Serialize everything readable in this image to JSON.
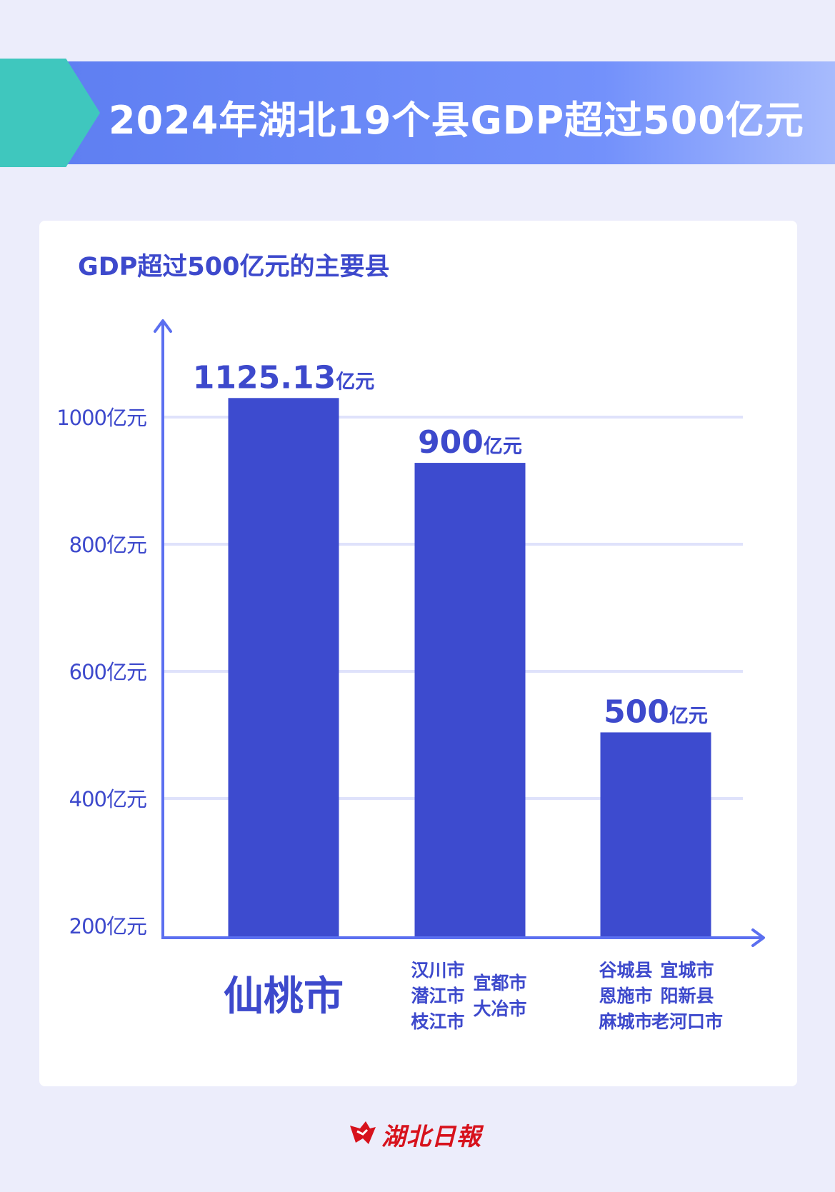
{
  "banner": {
    "title": "2024年湖北19个县GDP超过500亿元"
  },
  "colors": {
    "bar": "#3d4bcf",
    "axis": "#5b6ff0",
    "grid": "#dfe2fb",
    "text": "#3d49cc",
    "arrow": "#3fc7be",
    "logo": "#d7121c"
  },
  "chart_data": {
    "type": "bar",
    "title": "GDP超过500亿元的主要县",
    "y_unit": "亿元",
    "ylim": [
      200,
      1200
    ],
    "yticks": [
      200,
      400,
      600,
      800,
      1000
    ],
    "ytick_labels": [
      "200亿元",
      "400亿元",
      "600亿元",
      "800亿元",
      "1000亿元"
    ],
    "grid": true,
    "categories": [
      {
        "columns": [
          [
            "仙桃市"
          ]
        ],
        "size": "large"
      },
      {
        "columns": [
          [
            "汉川市",
            "潜江市",
            "枝江市"
          ],
          [
            "宜都市",
            "大冶市"
          ]
        ],
        "size": "small"
      },
      {
        "columns": [
          [
            "谷城县",
            "恩施市",
            "麻城市"
          ],
          [
            "宜城市",
            "阳新县",
            "老河口市"
          ]
        ],
        "size": "small"
      }
    ],
    "values": [
      1125.13,
      900,
      500
    ],
    "bar_display": [
      1030,
      928,
      504
    ],
    "value_labels": [
      {
        "number": "1125.13",
        "unit": "亿元"
      },
      {
        "number": "900",
        "unit": "亿元"
      },
      {
        "number": "500",
        "unit": "亿元"
      }
    ]
  },
  "footer": {
    "logo_text": "湖北日報",
    "logo_icon": "hubei-daily-logo-icon"
  }
}
